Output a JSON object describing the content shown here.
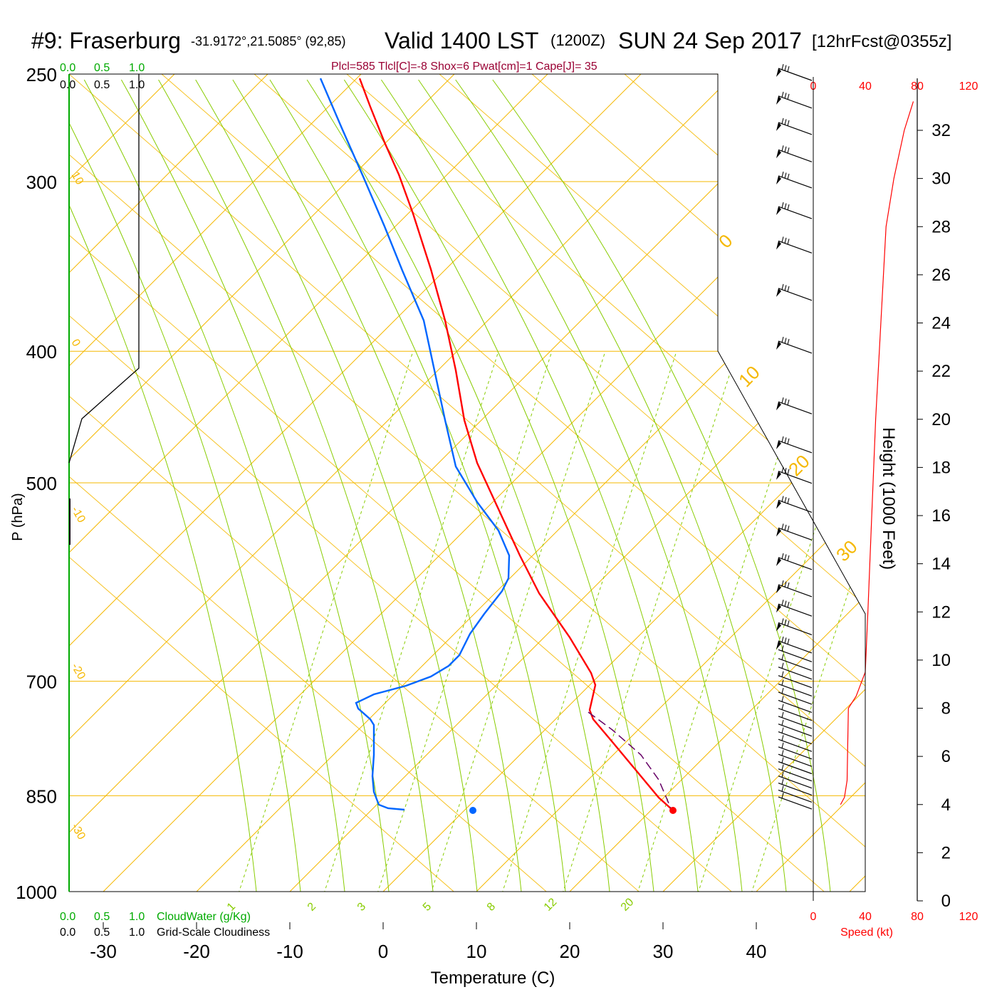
{
  "title": {
    "station": "#9: Fraserburg",
    "coords": "-31.9172°,21.5085° (92,85)",
    "valid": "Valid 1400 LST",
    "zulu": "(1200Z)",
    "date": "SUN 24 Sep 2017",
    "forecast": "[12hrFcst@0355z]"
  },
  "stats_line": "Plcl=585 Tlcl[C]=-8 Shox=6 Pwat[cm]=1 Cape[J]= 35",
  "colors": {
    "temperature": "#ff0000",
    "dewpoint": "#0066ff",
    "isotherm": "#f5b800",
    "mixing_ratio": "#88cc00",
    "cloud": "#00aa00",
    "stats": "#990033",
    "parcel": "#660066"
  },
  "labels": {
    "cloud_top_green": [
      "0.0",
      "0.5",
      "1.0"
    ],
    "cloud_top_black": [
      "0.0",
      "0.5",
      "1.0"
    ],
    "cloud_bottom_green": [
      "0.0",
      "0.5",
      "1.0"
    ],
    "cloud_bottom_black": [
      "0.0",
      "0.5",
      "1.0"
    ],
    "cloudwater": "CloudWater (g/Kg)",
    "cloudiness": "Grid-Scale Cloudiness",
    "ylabel": "P (hPa)",
    "xlabel": "Temperature (C)",
    "height_label": "Height (1000 Feet)",
    "speed_label": "Speed (kt)",
    "speed_ticks_top": [
      "0",
      "40",
      "80",
      "120"
    ],
    "speed_ticks_bottom": [
      "0",
      "40",
      "80",
      "120"
    ]
  },
  "chart_data": {
    "type": "line",
    "subtype": "skew-T log-P sounding",
    "pressure_ticks": [
      250,
      300,
      400,
      500,
      700,
      850,
      1000
    ],
    "temp_ticks": [
      -30,
      -20,
      -10,
      0,
      10,
      20,
      30,
      40
    ],
    "height_ticks": [
      0,
      2,
      4,
      6,
      8,
      10,
      12,
      14,
      16,
      18,
      20,
      22,
      24,
      26,
      28,
      30,
      32
    ],
    "isotherm_labels": [
      "10",
      "0",
      "-10",
      "-20",
      "-30"
    ],
    "theta_labels": [
      "0",
      "10",
      "20",
      "30"
    ],
    "mixing_ratio_labels": [
      "1",
      "2",
      "3",
      "5",
      "8",
      "12",
      "20"
    ],
    "series": [
      {
        "name": "Temperature",
        "points": [
          [
            22.3,
            -34.2
          ],
          [
            22.8,
            -31.0
          ],
          [
            23.5,
            -28.0
          ],
          [
            25.0,
            -22.7
          ],
          [
            25.7,
            -18.7
          ],
          [
            26.7,
            -12.3
          ],
          [
            27.3,
            -5.4
          ],
          [
            29.3,
            4.0
          ],
          [
            32.0,
            14.0
          ],
          [
            34.5,
            21.5
          ],
          [
            35.8,
            25.5
          ],
          [
            36.7,
            27.6
          ],
          [
            39.0,
            30.3
          ],
          [
            40.0,
            31.0
          ]
        ]
      },
      {
        "name": "Dewpoint",
        "points": [
          [
            -11.3,
            -34.2
          ],
          [
            -10.8,
            -28.0
          ],
          [
            -11.1,
            -26.0
          ],
          [
            -12.4,
            -18.0
          ],
          [
            -11.0,
            -10.7
          ],
          [
            -4.0,
            -1.0
          ],
          [
            1.5,
            5.0
          ],
          [
            2.7,
            11.5
          ],
          [
            -5.0,
            17.7
          ],
          [
            -3.6,
            20.8
          ],
          [
            -2.8,
            22.0
          ],
          [
            -2.0,
            25.0
          ],
          [
            -1.1,
            27.6
          ],
          [
            1.5,
            30.3
          ],
          [
            9.0,
            31.0
          ]
        ]
      },
      {
        "name": "Parcel",
        "points": [
          [
            22.0,
            -34.2
          ],
          [
            29.7,
            -19.6
          ],
          [
            31.0,
            -16.0
          ],
          [
            36.7,
            28.8
          ],
          [
            40.0,
            31.0
          ]
        ]
      }
    ],
    "surface_temperature_marker": [
      40.0,
      31.0
    ],
    "surface_dewpoint_marker": [
      18.0,
      31.0
    ],
    "wind_speed_profile": {
      "height_kft": [
        4.0,
        4.3,
        5.0,
        8.0,
        8.5,
        9.5,
        12.0,
        16.0,
        20.0,
        24.0,
        28.0,
        30.0,
        32.0,
        33.2
      ],
      "speed_kt": [
        21,
        24,
        26,
        27,
        33,
        40,
        42,
        45,
        48,
        52,
        56,
        62,
        70,
        77
      ]
    },
    "wind_barbs": {
      "pressures": [
        250,
        262,
        274,
        287,
        300,
        316,
        335,
        363,
        397,
        440,
        470,
        495,
        520,
        545,
        573,
        600,
        620,
        640,
        660,
        670,
        680,
        690,
        700,
        710,
        720,
        730,
        740,
        750,
        760,
        770,
        780,
        790,
        800,
        810,
        820,
        830,
        840,
        850,
        860
      ],
      "flags": [
        1,
        1,
        1,
        1,
        1,
        1,
        1,
        1,
        1,
        1,
        1,
        1,
        1,
        1,
        1,
        1,
        1,
        1,
        1,
        0,
        0,
        0,
        0,
        0,
        0,
        0,
        0,
        0,
        0,
        0,
        0,
        0,
        0,
        0,
        0,
        0,
        0,
        0,
        0
      ]
    },
    "cloudiness_profile": [
      [
        0.0,
        -34.0
      ],
      [
        0.0,
        10.0
      ],
      [
        1.0,
        10.0
      ],
      [
        1.0,
        -34.0
      ]
    ],
    "cloudwater_profile": [
      [
        0.0,
        -34.0
      ],
      [
        0.0,
        31.0
      ]
    ]
  }
}
